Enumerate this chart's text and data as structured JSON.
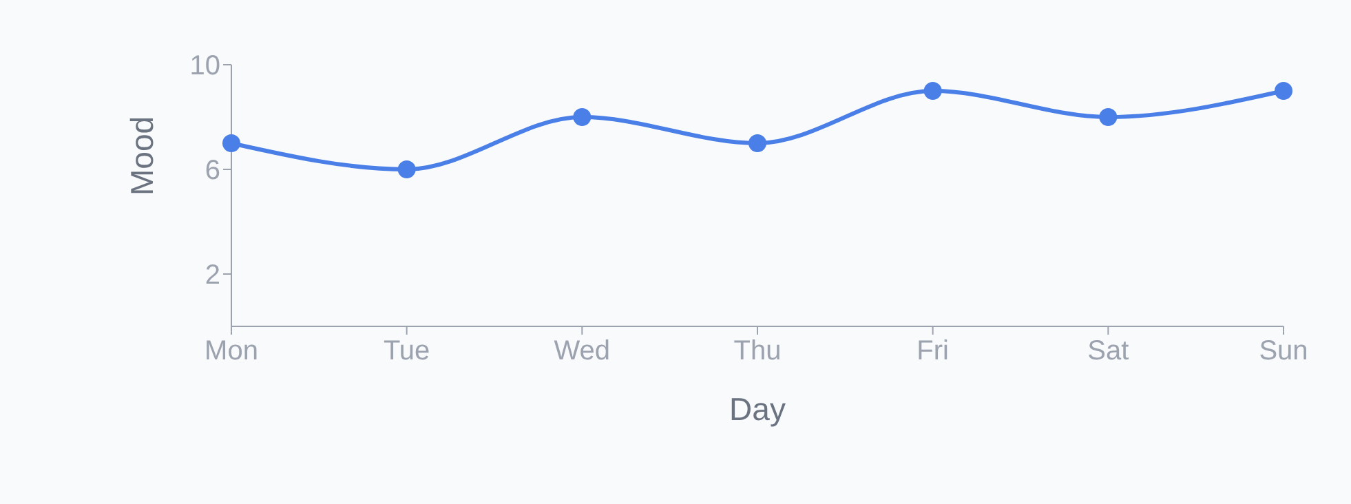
{
  "chart_data": {
    "type": "line",
    "xlabel": "Day",
    "ylabel": "Mood",
    "categories": [
      "Mon",
      "Tue",
      "Wed",
      "Thu",
      "Fri",
      "Sat",
      "Sun"
    ],
    "series": [
      {
        "color": "#4b7fe8",
        "values": [
          7,
          6,
          8,
          7,
          9,
          8,
          9
        ]
      }
    ],
    "ylim": [
      0,
      10
    ],
    "yticks": [
      2,
      6,
      10
    ],
    "grid": false,
    "legend": false,
    "marker": "circle",
    "line_style": "solid"
  }
}
